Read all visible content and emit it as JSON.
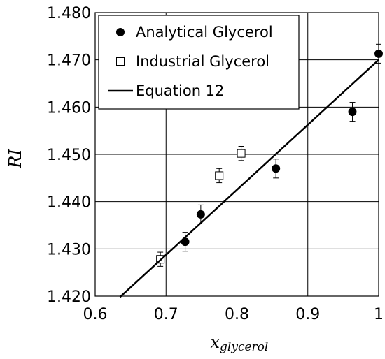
{
  "chart_data": {
    "type": "scatter",
    "title": "",
    "xlabel": {
      "main": "x",
      "subscript": "glycerol"
    },
    "ylabel": "RI",
    "xlim": [
      0.6,
      1.0
    ],
    "ylim": [
      1.42,
      1.48
    ],
    "xticks": [
      "0.6",
      "0.7",
      "0.8",
      "0.9",
      "1"
    ],
    "yticks": [
      "1.420",
      "1.430",
      "1.440",
      "1.450",
      "1.460",
      "1.470",
      "1.480"
    ],
    "grid": true,
    "legend_position": "top-left",
    "series": [
      {
        "name": "Analytical Glycerol",
        "marker": "filled-circle",
        "color": "#000000",
        "points": [
          {
            "x": 0.727,
            "y": 1.4315,
            "err": 0.002
          },
          {
            "x": 0.749,
            "y": 1.4373,
            "err": 0.002
          },
          {
            "x": 0.855,
            "y": 1.447,
            "err": 0.002
          },
          {
            "x": 0.963,
            "y": 1.459,
            "err": 0.002
          },
          {
            "x": 1.0,
            "y": 1.4713,
            "err": 0.002
          }
        ]
      },
      {
        "name": "Industrial Glycerol",
        "marker": "open-square",
        "color": "#000000",
        "points": [
          {
            "x": 0.692,
            "y": 1.4278,
            "err": 0.0015
          },
          {
            "x": 0.775,
            "y": 1.4455,
            "err": 0.0015
          },
          {
            "x": 0.806,
            "y": 1.4502,
            "err": 0.0015
          }
        ]
      },
      {
        "name": "Equation 12",
        "type": "line",
        "color": "#000000",
        "x": [
          0.635,
          1.0
        ],
        "y": [
          1.4198,
          1.47
        ]
      }
    ]
  }
}
